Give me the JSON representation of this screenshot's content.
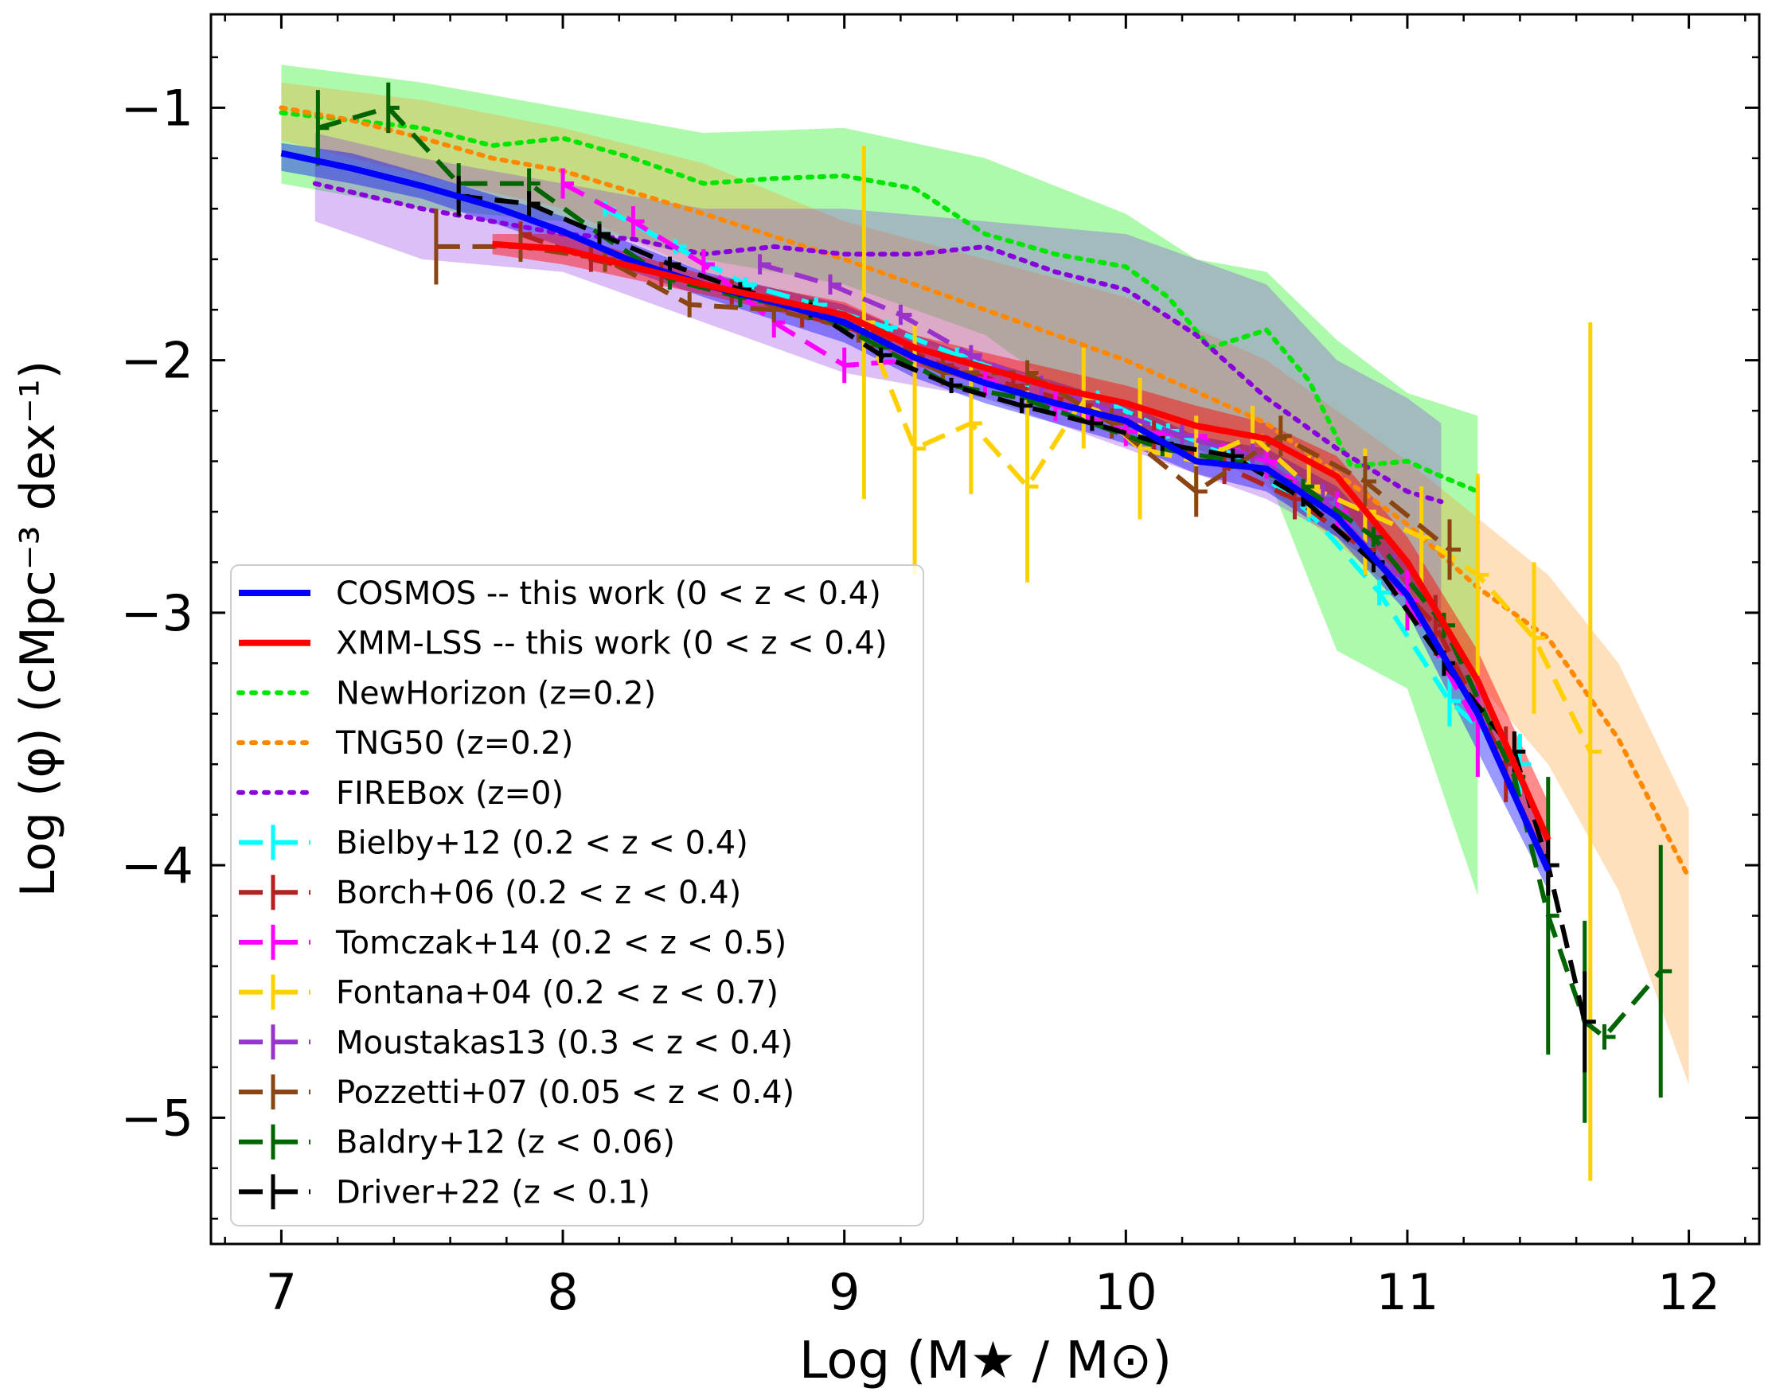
{
  "chart_data": {
    "type": "line",
    "title": "",
    "xlabel": "Log (M★ / M⊙)",
    "ylabel": "Log (φ)  (cMpc⁻³ dex⁻¹)",
    "xlim": [
      6.75,
      12.25
    ],
    "ylim": [
      -5.5,
      -0.63
    ],
    "xticks": [
      7,
      8,
      9,
      10,
      11,
      12
    ],
    "yticks": [
      -1,
      -2,
      -3,
      -4,
      -5
    ],
    "xtick_labels": [
      "7",
      "8",
      "9",
      "10",
      "11",
      "12"
    ],
    "ytick_labels": [
      "−1",
      "−2",
      "−3",
      "−4",
      "−5"
    ],
    "legend_position": "lower-left",
    "bands": [
      {
        "name": "NewHorizon band",
        "color": "#00ee00",
        "opacity": 0.32,
        "x": [
          7.0,
          7.5,
          8.0,
          8.5,
          9.0,
          9.5,
          10.0,
          10.25,
          10.5,
          10.75,
          11.0,
          11.25
        ],
        "upper": [
          -0.83,
          -0.9,
          -1.0,
          -1.1,
          -1.08,
          -1.2,
          -1.42,
          -1.6,
          -1.65,
          -1.92,
          -2.13,
          -2.22
        ],
        "lower": [
          -1.3,
          -1.4,
          -1.45,
          -1.6,
          -1.7,
          -1.9,
          -2.3,
          -2.35,
          -2.45,
          -3.15,
          -3.3,
          -4.12
        ]
      },
      {
        "name": "TNG50 band",
        "color": "#ff9922",
        "opacity": 0.3,
        "x": [
          7.0,
          7.5,
          8.0,
          8.5,
          9.0,
          9.5,
          10.0,
          10.5,
          11.0,
          11.5,
          11.75,
          12.0
        ],
        "upper": [
          -0.9,
          -0.97,
          -1.08,
          -1.22,
          -1.45,
          -1.6,
          -1.75,
          -2.0,
          -2.4,
          -2.85,
          -3.2,
          -3.78
        ],
        "lower": [
          -1.13,
          -1.27,
          -1.4,
          -1.65,
          -1.85,
          -2.0,
          -2.2,
          -2.5,
          -2.95,
          -3.6,
          -4.1,
          -4.87
        ]
      },
      {
        "name": "FIREBox band",
        "color": "#8a2be2",
        "opacity": 0.3,
        "x": [
          7.12,
          7.5,
          8.0,
          8.5,
          9.0,
          9.5,
          10.0,
          10.5,
          10.75,
          11.0,
          11.12
        ],
        "upper": [
          -1.1,
          -1.2,
          -1.3,
          -1.4,
          -1.4,
          -1.45,
          -1.5,
          -1.7,
          -2.0,
          -2.15,
          -2.25
        ],
        "lower": [
          -1.45,
          -1.6,
          -1.65,
          -1.85,
          -2.05,
          -2.15,
          -2.35,
          -2.55,
          -2.7,
          -2.9,
          -3.0
        ]
      },
      {
        "name": "COSMOS band",
        "color": "#0000ff",
        "opacity": 0.4,
        "x": [
          7.0,
          7.25,
          7.5,
          8.0,
          8.5,
          9.0,
          9.25,
          9.5,
          10.0,
          10.25,
          10.5,
          10.75,
          11.0,
          11.25,
          11.5
        ],
        "upper": [
          -1.14,
          -1.18,
          -1.26,
          -1.43,
          -1.65,
          -1.78,
          -1.9,
          -2.0,
          -2.17,
          -2.3,
          -2.35,
          -2.5,
          -2.8,
          -3.3,
          -3.9
        ],
        "lower": [
          -1.25,
          -1.3,
          -1.36,
          -1.55,
          -1.75,
          -1.93,
          -2.07,
          -2.17,
          -2.33,
          -2.45,
          -2.52,
          -2.7,
          -3.0,
          -3.55,
          -4.1
        ]
      },
      {
        "name": "XMM-LSS band",
        "color": "#ff0000",
        "opacity": 0.45,
        "x": [
          7.75,
          8.0,
          8.5,
          9.0,
          9.25,
          9.5,
          10.0,
          10.25,
          10.5,
          10.75,
          11.0,
          11.25,
          11.5
        ],
        "upper": [
          -1.5,
          -1.5,
          -1.66,
          -1.77,
          -1.9,
          -1.97,
          -2.1,
          -2.18,
          -2.25,
          -2.38,
          -2.7,
          -3.15,
          -3.75
        ],
        "lower": [
          -1.58,
          -1.62,
          -1.74,
          -1.87,
          -2.02,
          -2.1,
          -2.25,
          -2.33,
          -2.38,
          -2.55,
          -2.9,
          -3.4,
          -4.0
        ]
      }
    ],
    "series": [
      {
        "name": "NewHorizon",
        "label": "NewHorizon (z=0.2)",
        "color": "#00e600",
        "style": "dotted",
        "width": 6,
        "x": [
          7.0,
          7.25,
          7.5,
          7.75,
          8.0,
          8.25,
          8.5,
          8.75,
          9.0,
          9.25,
          9.5,
          9.75,
          10.0,
          10.15,
          10.3,
          10.5,
          10.65,
          10.8,
          11.0,
          11.1,
          11.25
        ],
        "y": [
          -1.02,
          -1.05,
          -1.08,
          -1.15,
          -1.12,
          -1.2,
          -1.3,
          -1.28,
          -1.27,
          -1.32,
          -1.5,
          -1.58,
          -1.63,
          -1.75,
          -1.95,
          -1.88,
          -2.08,
          -2.42,
          -2.4,
          -2.45,
          -2.52
        ]
      },
      {
        "name": "TNG50",
        "label": "TNG50 (z=0.2)",
        "color": "#ff8800",
        "style": "dotted",
        "width": 6,
        "x": [
          7.0,
          7.25,
          7.5,
          7.75,
          8.0,
          8.5,
          9.0,
          9.5,
          10.0,
          10.5,
          11.0,
          11.25,
          11.5,
          11.75,
          12.0
        ],
        "y": [
          -1.0,
          -1.05,
          -1.12,
          -1.2,
          -1.25,
          -1.42,
          -1.6,
          -1.8,
          -2.0,
          -2.25,
          -2.65,
          -2.9,
          -3.1,
          -3.5,
          -4.05
        ]
      },
      {
        "name": "FIREBox",
        "label": "FIREBox (z=0)",
        "color": "#8800dd",
        "style": "dotted",
        "width": 6,
        "x": [
          7.12,
          7.5,
          8.0,
          8.25,
          8.5,
          8.75,
          9.0,
          9.25,
          9.5,
          9.75,
          10.0,
          10.25,
          10.5,
          10.75,
          11.0,
          11.12
        ],
        "y": [
          -1.3,
          -1.4,
          -1.5,
          -1.52,
          -1.58,
          -1.55,
          -1.58,
          -1.58,
          -1.55,
          -1.65,
          -1.72,
          -1.9,
          -2.15,
          -2.35,
          -2.52,
          -2.56
        ]
      },
      {
        "name": "COSMOS",
        "label": "COSMOS -- this work (0 < z < 0.4)",
        "color": "#0000ff",
        "style": "solid",
        "width": 8,
        "x": [
          7.0,
          7.25,
          7.5,
          7.75,
          8.0,
          8.25,
          8.5,
          8.75,
          9.0,
          9.25,
          9.5,
          9.75,
          10.0,
          10.25,
          10.5,
          10.75,
          11.0,
          11.25,
          11.5
        ],
        "y": [
          -1.18,
          -1.24,
          -1.31,
          -1.39,
          -1.49,
          -1.61,
          -1.7,
          -1.77,
          -1.85,
          -1.99,
          -2.09,
          -2.17,
          -2.24,
          -2.4,
          -2.43,
          -2.62,
          -2.93,
          -3.4,
          -4.02
        ]
      },
      {
        "name": "XMM-LSS",
        "label": "XMM-LSS -- this work (0 < z < 0.4)",
        "color": "#ff0000",
        "style": "solid",
        "width": 8,
        "x": [
          7.75,
          8.0,
          8.25,
          8.5,
          8.75,
          9.0,
          9.25,
          9.5,
          9.75,
          10.0,
          10.25,
          10.5,
          10.75,
          11.0,
          11.25,
          11.5
        ],
        "y": [
          -1.54,
          -1.56,
          -1.63,
          -1.7,
          -1.76,
          -1.82,
          -1.95,
          -2.03,
          -2.11,
          -2.17,
          -2.26,
          -2.31,
          -2.46,
          -2.8,
          -3.27,
          -3.9
        ]
      },
      {
        "name": "Bielby+12",
        "label": "Bielby+12 (0.2 < z < 0.4)",
        "color": "#00ffff",
        "style": "dashed",
        "width": 6,
        "x": [
          8.15,
          8.4,
          8.65,
          8.9,
          9.15,
          9.4,
          9.65,
          9.9,
          10.15,
          10.4,
          10.65,
          10.9,
          11.15,
          11.4
        ],
        "y": [
          -1.4,
          -1.55,
          -1.7,
          -1.78,
          -1.87,
          -1.98,
          -2.08,
          -2.15,
          -2.28,
          -2.38,
          -2.6,
          -2.92,
          -3.35,
          -3.6
        ],
        "err": [
          0.03,
          0.03,
          0.03,
          0.03,
          0.03,
          0.03,
          0.03,
          0.03,
          0.03,
          0.03,
          0.04,
          0.05,
          0.1,
          0.12
        ]
      },
      {
        "name": "Borch+06",
        "label": "Borch+06 (0.2 < z < 0.4)",
        "color": "#b22222",
        "style": "dashed",
        "width": 6,
        "x": [
          7.85,
          8.1,
          8.35,
          8.6,
          8.85,
          9.1,
          9.35,
          9.6,
          9.85,
          10.1,
          10.35,
          10.6,
          10.85,
          11.1,
          11.35
        ],
        "y": [
          -1.5,
          -1.6,
          -1.66,
          -1.73,
          -1.82,
          -1.9,
          -2.02,
          -2.1,
          -2.18,
          -2.3,
          -2.42,
          -2.55,
          -2.75,
          -3.05,
          -3.6
        ],
        "err": [
          0.05,
          0.05,
          0.05,
          0.05,
          0.05,
          0.05,
          0.05,
          0.05,
          0.06,
          0.06,
          0.07,
          0.08,
          0.1,
          0.12,
          0.15
        ]
      },
      {
        "name": "Tomczak+14",
        "label": "Tomczak+14 (0.2 < z < 0.5)",
        "color": "#ff00ff",
        "style": "dashed",
        "width": 6,
        "x": [
          8.0,
          8.25,
          8.5,
          8.75,
          9.0,
          9.25,
          9.5,
          9.75,
          10.0,
          10.25,
          10.5,
          10.75,
          11.0,
          11.25
        ],
        "y": [
          -1.3,
          -1.45,
          -1.62,
          -1.85,
          -2.02,
          -2.0,
          -2.08,
          -2.18,
          -2.28,
          -2.3,
          -2.4,
          -2.6,
          -2.95,
          -3.45
        ],
        "err": [
          0.06,
          0.06,
          0.06,
          0.06,
          0.07,
          0.06,
          0.06,
          0.06,
          0.06,
          0.06,
          0.07,
          0.08,
          0.12,
          0.2
        ]
      },
      {
        "name": "Fontana+04",
        "label": "Fontana+04 (0.2 < z < 0.7)",
        "color": "#ffd000",
        "style": "dashed",
        "width": 6,
        "x": [
          9.07,
          9.25,
          9.45,
          9.65,
          9.85,
          10.05,
          10.25,
          10.45,
          10.65,
          10.85,
          11.05,
          11.25,
          11.45,
          11.65
        ],
        "y": [
          -1.85,
          -2.35,
          -2.25,
          -2.5,
          -2.15,
          -2.35,
          -2.4,
          -2.3,
          -2.5,
          -2.6,
          -2.7,
          -2.85,
          -3.1,
          -3.55
        ],
        "err": [
          0.7,
          0.5,
          0.28,
          0.38,
          0.2,
          0.28,
          0.18,
          0.12,
          0.12,
          0.25,
          0.2,
          0.4,
          0.3,
          1.7
        ]
      },
      {
        "name": "Moustakas13",
        "label": "Moustakas13 (0.3 < z < 0.4)",
        "color": "#9933cc",
        "style": "dashed",
        "width": 6,
        "x": [
          8.7,
          8.95,
          9.2,
          9.45,
          9.7,
          9.95,
          10.2,
          10.45,
          10.7,
          10.95
        ],
        "y": [
          -1.62,
          -1.7,
          -1.82,
          -1.98,
          -2.1,
          -2.2,
          -2.3,
          -2.38,
          -2.55,
          -2.85
        ],
        "err": [
          0.04,
          0.04,
          0.04,
          0.04,
          0.04,
          0.04,
          0.05,
          0.05,
          0.06,
          0.08
        ]
      },
      {
        "name": "Pozzetti+07",
        "label": "Pozzetti+07 (0.05 < z < 0.4)",
        "color": "#8b4513",
        "style": "dashed",
        "width": 6,
        "x": [
          7.55,
          7.85,
          8.15,
          8.45,
          8.75,
          9.05,
          9.35,
          9.65,
          9.95,
          10.25,
          10.55,
          10.85,
          11.15
        ],
        "y": [
          -1.55,
          -1.55,
          -1.6,
          -1.78,
          -1.8,
          -1.88,
          -2.05,
          -2.05,
          -2.25,
          -2.52,
          -2.3,
          -2.48,
          -2.75
        ],
        "err": [
          0.15,
          0.06,
          0.05,
          0.05,
          0.05,
          0.05,
          0.05,
          0.05,
          0.06,
          0.1,
          0.08,
          0.1,
          0.12
        ]
      },
      {
        "name": "Baldry+12",
        "label": "Baldry+12 (z < 0.06)",
        "color": "#006400",
        "style": "dashed",
        "width": 6,
        "x": [
          7.13,
          7.38,
          7.63,
          7.88,
          8.13,
          8.38,
          8.63,
          8.88,
          9.13,
          9.38,
          9.63,
          9.88,
          10.13,
          10.38,
          10.63,
          10.88,
          11.13,
          11.38,
          11.5,
          11.63,
          11.7,
          11.9
        ],
        "y": [
          -1.08,
          -1.0,
          -1.3,
          -1.3,
          -1.5,
          -1.68,
          -1.75,
          -1.8,
          -1.95,
          -2.1,
          -2.15,
          -2.25,
          -2.35,
          -2.4,
          -2.5,
          -2.7,
          -3.05,
          -3.65,
          -4.2,
          -4.62,
          -4.68,
          -4.42
        ],
        "err": [
          0.15,
          0.1,
          0.08,
          0.06,
          0.05,
          0.04,
          0.04,
          0.04,
          0.03,
          0.03,
          0.03,
          0.03,
          0.03,
          0.03,
          0.03,
          0.04,
          0.05,
          0.08,
          0.55,
          0.4,
          0.05,
          0.5
        ]
      },
      {
        "name": "Driver+22",
        "label": "Driver+22 (z < 0.1)",
        "color": "#000000",
        "style": "dashed",
        "width": 6,
        "x": [
          7.63,
          7.88,
          8.13,
          8.38,
          8.63,
          8.88,
          9.13,
          9.38,
          9.63,
          9.88,
          10.13,
          10.38,
          10.63,
          10.88,
          11.13,
          11.38,
          11.5,
          11.63
        ],
        "y": [
          -1.35,
          -1.38,
          -1.5,
          -1.62,
          -1.72,
          -1.8,
          -1.98,
          -2.1,
          -2.18,
          -2.25,
          -2.33,
          -2.38,
          -2.55,
          -2.8,
          -3.2,
          -3.55,
          -4.0,
          -4.62
        ],
        "err": [
          0.08,
          0.05,
          0.04,
          0.03,
          0.03,
          0.03,
          0.03,
          0.03,
          0.03,
          0.03,
          0.03,
          0.03,
          0.03,
          0.04,
          0.05,
          0.08,
          0.12,
          0.2
        ]
      }
    ],
    "legend": [
      {
        "label": "COSMOS -- this work (0 < z < 0.4)",
        "color": "#0000ff",
        "style": "solid"
      },
      {
        "label": "XMM-LSS -- this work (0 < z < 0.4)",
        "color": "#ff0000",
        "style": "solid"
      },
      {
        "label": "NewHorizon (z=0.2)",
        "color": "#00e600",
        "style": "dotted"
      },
      {
        "label": "TNG50 (z=0.2)",
        "color": "#ff8800",
        "style": "dotted"
      },
      {
        "label": "FIREBox (z=0)",
        "color": "#8800dd",
        "style": "dotted"
      },
      {
        "label": "Bielby+12 (0.2 < z < 0.4)",
        "color": "#00ffff",
        "style": "errbar"
      },
      {
        "label": "Borch+06 (0.2 < z < 0.4)",
        "color": "#b22222",
        "style": "errbar"
      },
      {
        "label": "Tomczak+14 (0.2 < z < 0.5)",
        "color": "#ff00ff",
        "style": "errbar"
      },
      {
        "label": "Fontana+04 (0.2 < z < 0.7)",
        "color": "#ffd000",
        "style": "errbar"
      },
      {
        "label": "Moustakas13 (0.3 < z < 0.4)",
        "color": "#9933cc",
        "style": "errbar"
      },
      {
        "label": "Pozzetti+07 (0.05 < z < 0.4)",
        "color": "#8b4513",
        "style": "errbar"
      },
      {
        "label": "Baldry+12 (z < 0.06)",
        "color": "#006400",
        "style": "errbar"
      },
      {
        "label": "Driver+22 (z < 0.1)",
        "color": "#000000",
        "style": "errbar"
      }
    ]
  }
}
